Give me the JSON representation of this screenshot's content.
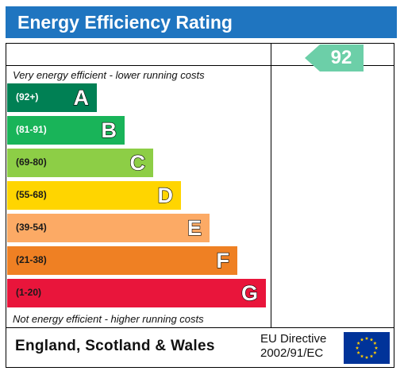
{
  "header": {
    "title": "Energy Efficiency Rating"
  },
  "captions": {
    "top": "Very energy efficient - lower running costs",
    "bottom": "Not energy efficient - higher running costs"
  },
  "bands": [
    {
      "range": "(92+)",
      "letter": "A",
      "color": "#008054"
    },
    {
      "range": "(81-91)",
      "letter": "B",
      "color": "#19b459"
    },
    {
      "range": "(69-80)",
      "letter": "C",
      "color": "#8dce46"
    },
    {
      "range": "(55-68)",
      "letter": "D",
      "color": "#ffd500"
    },
    {
      "range": "(39-54)",
      "letter": "E",
      "color": "#fcaa65"
    },
    {
      "range": "(21-38)",
      "letter": "F",
      "color": "#ef8023"
    },
    {
      "range": "(1-20)",
      "letter": "G",
      "color": "#e9153b"
    }
  ],
  "current_rating": {
    "value": "92",
    "color": "#6ccfa8"
  },
  "footer": {
    "country": "England, Scotland & Wales",
    "directive_line1": "EU Directive",
    "directive_line2": "2002/91/EC",
    "flag_color": "#003399",
    "star_color": "#ffcc00"
  }
}
